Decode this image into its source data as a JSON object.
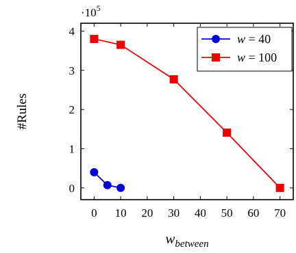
{
  "chart_data": {
    "type": "line",
    "title": "",
    "xlabel": "w_between",
    "xlabel_main": "w",
    "xlabel_sub": "between",
    "ylabel": "#Rules",
    "y_scale_factor": "·10",
    "y_scale_exponent": "5",
    "xlim": [
      -5,
      75
    ],
    "ylim": [
      -0.3,
      4.2
    ],
    "x_ticks": [
      0,
      10,
      20,
      30,
      40,
      50,
      60,
      70
    ],
    "y_ticks": [
      0,
      1,
      2,
      3,
      4
    ],
    "x_tick_labels": [
      "0",
      "10",
      "20",
      "30",
      "40",
      "50",
      "60",
      "70"
    ],
    "y_tick_labels": [
      "0",
      "1",
      "2",
      "3",
      "4"
    ],
    "legend_position": "top-right",
    "grid": false,
    "series": [
      {
        "name": "w = 40",
        "legend_var": "w",
        "legend_value": "= 40",
        "color": "#0000dd",
        "marker": "circle",
        "x": [
          0,
          5,
          10
        ],
        "y": [
          0.4,
          0.07,
          0.0
        ]
      },
      {
        "name": "w = 100",
        "legend_var": "w",
        "legend_value": "= 100",
        "color": "#ee0000",
        "marker": "square",
        "x": [
          0,
          10,
          30,
          50,
          70
        ],
        "y": [
          3.8,
          3.65,
          2.77,
          1.41,
          0.0
        ]
      }
    ]
  }
}
